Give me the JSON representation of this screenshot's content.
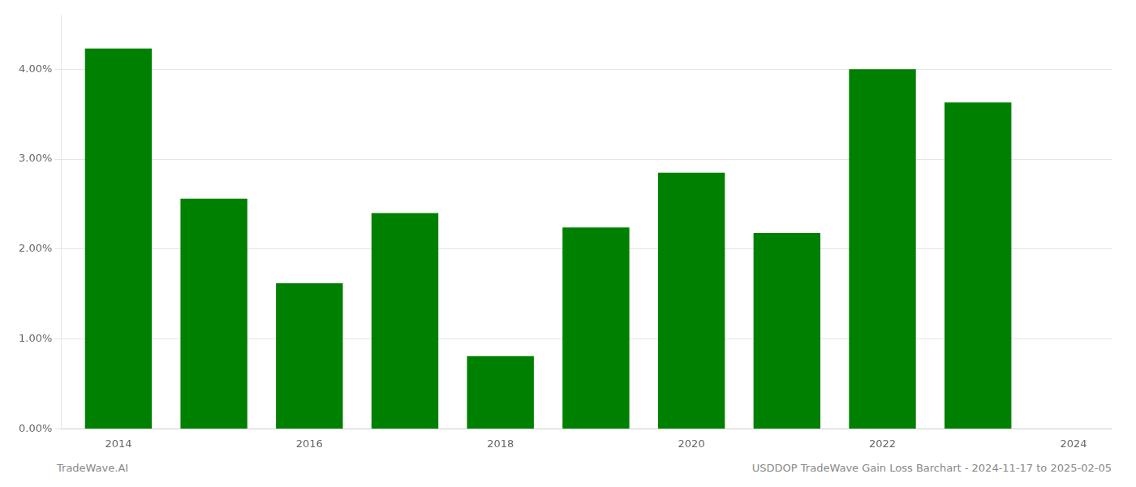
{
  "chart_data": {
    "type": "bar",
    "x": [
      2014,
      2015,
      2016,
      2017,
      2018,
      2019,
      2020,
      2021,
      2022,
      2023
    ],
    "values": [
      0.0423,
      0.0256,
      0.0162,
      0.024,
      0.0081,
      0.0224,
      0.0285,
      0.0218,
      0.04,
      0.0363
    ],
    "color": "#008000",
    "xlim": [
      2013.4,
      2024.4
    ],
    "xticks": [
      2014,
      2016,
      2018,
      2020,
      2022,
      2024
    ],
    "ylim": [
      0,
      0.046
    ],
    "yticks": [
      {
        "value": 0,
        "label": "0.00%"
      },
      {
        "value": 0.01,
        "label": "1.00%"
      },
      {
        "value": 0.02,
        "label": "2.00%"
      },
      {
        "value": 0.03,
        "label": "3.00%"
      },
      {
        "value": 0.04,
        "label": "4.00%"
      }
    ],
    "grid": true,
    "annotations": [
      "TradeWave.AI",
      "USDDOP TradeWave Gain Loss Barchart - 2024-11-17 to 2025-02-05"
    ]
  }
}
